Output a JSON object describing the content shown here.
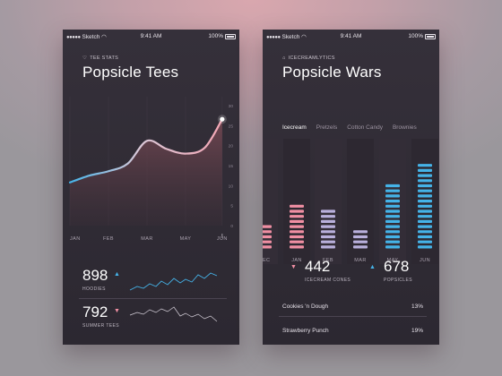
{
  "colors": {
    "blue": "#45b3e8",
    "pink": "#f08fa3",
    "lavender": "#b9b0dc",
    "surface": "#2f2a34"
  },
  "left": {
    "status": {
      "carrier": "Sketch",
      "time": "9:41 AM",
      "battery": "100%"
    },
    "kicker": "TEE STATS",
    "title": "Popsicle Tees",
    "chart_data": {
      "type": "area",
      "categories": [
        "JAN",
        "FEB",
        "MAR",
        "MAY",
        "JUN"
      ],
      "yticks": [
        0,
        5,
        10,
        15,
        20,
        25,
        30
      ],
      "ylim": [
        0,
        30
      ],
      "x": [
        0,
        0.5,
        1,
        1.5,
        2,
        2.5,
        3,
        3.5,
        3.95
      ],
      "values": [
        10.8,
        12.5,
        13.6,
        15.5,
        21.2,
        19.2,
        18.0,
        19.5,
        26.6
      ]
    },
    "stats": [
      {
        "value": "898",
        "label": "HOODIES",
        "trend": "up"
      },
      {
        "value": "792",
        "label": "SUMMER TEES",
        "trend": "down"
      }
    ]
  },
  "right": {
    "status": {
      "carrier": "Sketch",
      "time": "9:41 AM",
      "battery": "100%"
    },
    "kicker": "ICECREAMLYTICS",
    "title": "Popsicle Wars",
    "tabs": [
      "Icecream",
      "Pretzels",
      "Cotton Candy",
      "Brownies"
    ],
    "chart_data": {
      "type": "bar",
      "categories": [
        "DEC",
        "JAN",
        "FEB",
        "MAR",
        "MAY",
        "JUN"
      ],
      "values": [
        5,
        9,
        8,
        4,
        13,
        17
      ],
      "colors": [
        "#f08fa3",
        "#f08fa3",
        "#b9b0dc",
        "#b9b0dc",
        "#45b3e8",
        "#45b3e8"
      ]
    },
    "stats": [
      {
        "value": "442",
        "label": "ICECREAM CONES",
        "trend": "down"
      },
      {
        "value": "678",
        "label": "POPSICLES",
        "trend": "up"
      }
    ],
    "rows": [
      {
        "label": "Cookies 'n Dough",
        "value": "13%"
      },
      {
        "label": "Strawberry Punch",
        "value": "19%"
      }
    ]
  }
}
